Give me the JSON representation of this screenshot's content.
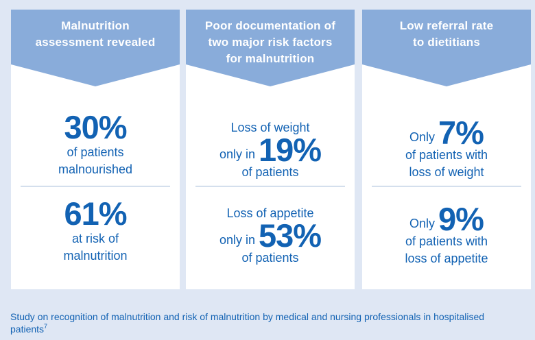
{
  "cards": [
    {
      "title": "Malnutrition\nassessment revealed",
      "stat1": {
        "value": "30%",
        "line1": "of patients",
        "line2": "malnourished"
      },
      "stat2": {
        "value": "61%",
        "line1": "at risk of",
        "line2": "malnutrition"
      }
    },
    {
      "title": "Poor documentation of\ntwo major risk factors\nfor malnutrition",
      "stat1": {
        "pre": "Loss of weight",
        "mid": "only in",
        "value": "19%",
        "post": "of patients"
      },
      "stat2": {
        "pre": "Loss of appetite",
        "mid": "only in",
        "value": "53%",
        "post": "of patients"
      }
    },
    {
      "title": "Low referral rate\nto dietitians",
      "stat1": {
        "mid": "Only",
        "value": "7%",
        "line1": "of patients with",
        "line2": "loss of weight"
      },
      "stat2": {
        "mid": "Only",
        "value": "9%",
        "line1": "of patients with",
        "line2": "loss of appetite"
      }
    }
  ],
  "footnote": {
    "text": "Study on recognition of malnutrition and risk of malnutrition by medical and nursing professionals in hospitalised patients",
    "ref": "7"
  },
  "colors": {
    "background": "#dfe7f4",
    "banner": "#89acda",
    "accent_text": "#1262b3",
    "card": "#ffffff"
  }
}
